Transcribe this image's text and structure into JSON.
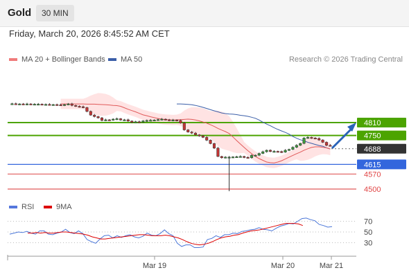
{
  "header": {
    "instrument": "Gold",
    "timeframe": "30 MIN",
    "datetime": "Friday, March 20, 2026 8:45:52 AM CET"
  },
  "legend": {
    "ma20": "MA 20 + Bollinger Bands",
    "ma50": "MA 50",
    "credit": "Research © 2026 Trading Central",
    "rsi": "RSI",
    "rsi_ma": "9MA"
  },
  "colors": {
    "resistance": "#4ca400",
    "support": "#3366dd",
    "ma20": "#e05a5a",
    "ma50": "#3a5ea8",
    "band_fill": "#ffd9d9",
    "rsi": "#4a76d8",
    "rsi_ma": "#dd0000",
    "candle_up": "#3d9a3d",
    "candle_down": "#c23535"
  },
  "levels": [
    {
      "label": "4810",
      "kind": "resistance"
    },
    {
      "label": "4750",
      "kind": "resistance"
    },
    {
      "label": "4688",
      "kind": "current"
    },
    {
      "label": "4615",
      "kind": "support"
    },
    {
      "label": "4570",
      "kind": "support2"
    },
    {
      "label": "4500",
      "kind": "support2"
    }
  ],
  "chart_data": [
    {
      "type": "line",
      "title": "Gold 30 MIN",
      "x_labels": [
        "Mar 19",
        "Mar 20",
        "Mar 21"
      ],
      "price_levels": [
        4810,
        4750,
        4688,
        4615,
        4570,
        4500
      ],
      "ylim": [
        4490,
        4900
      ],
      "series": [
        {
          "name": "Price",
          "values": [
            4897,
            4898,
            4897,
            4897,
            4896,
            4897,
            4896,
            4896,
            4896,
            4895,
            4895,
            4894,
            4894,
            4893,
            4891,
            4894,
            4897,
            4890,
            4886,
            4884,
            4880,
            4862,
            4845,
            4838,
            4832,
            4820,
            4823,
            4822,
            4826,
            4828,
            4822,
            4823,
            4817,
            4811,
            4814,
            4812,
            4818,
            4820,
            4821,
            4822,
            4824,
            4826,
            4823,
            4821,
            4822,
            4820,
            4808,
            4776,
            4766,
            4761,
            4753,
            4748,
            4741,
            4728,
            4712,
            4691,
            4652,
            4646,
            4649,
            4649,
            4650,
            4651,
            4652,
            4648,
            4646,
            4657,
            4658,
            4666,
            4674,
            4681,
            4675,
            4676,
            4675,
            4672,
            4681,
            4685,
            4695,
            4704,
            4713,
            4738,
            4741,
            4738,
            4736,
            4729,
            4718,
            4704,
            4702
          ]
        },
        {
          "name": "MA 20",
          "values": [
            4897,
            4897,
            4897,
            4897,
            4897,
            4897,
            4897,
            4896,
            4896,
            4896,
            4895,
            4894,
            4893,
            4892,
            4890,
            4889,
            4886,
            4879,
            4872,
            4866,
            4860,
            4853,
            4846,
            4842,
            4837,
            4833,
            4829,
            4826,
            4824,
            4823,
            4822,
            4823,
            4824,
            4825,
            4826,
            4825,
            4822,
            4818,
            4813,
            4807,
            4800,
            4792,
            4783,
            4775,
            4768,
            4759,
            4743,
            4726,
            4710,
            4694,
            4679,
            4665,
            4652,
            4642,
            4634,
            4626,
            4623,
            4622,
            4626,
            4632,
            4640,
            4649,
            4657,
            4665,
            4672,
            4681,
            4688,
            4694,
            4697,
            4697,
            4695,
            4692,
            4687
          ]
        },
        {
          "name": "MA 50",
          "values": [
            4897,
            4897,
            4896,
            4895,
            4893,
            4890,
            4886,
            4881,
            4876,
            4870,
            4865,
            4860,
            4855,
            4852,
            4850,
            4849,
            4847,
            4844,
            4842,
            4839,
            4835,
            4830,
            4822,
            4812,
            4803,
            4795,
            4786,
            4778,
            4771,
            4764,
            4756,
            4745,
            4737,
            4730,
            4725,
            4718,
            4713,
            4708,
            4703,
            4700,
            4692,
            4687
          ]
        }
      ]
    },
    {
      "type": "line",
      "title": "RSI",
      "ylim": [
        0,
        100
      ],
      "y_ticks": [
        70,
        50,
        30
      ],
      "series": [
        {
          "name": "RSI",
          "values": [
            46,
            48,
            50,
            49,
            51,
            48,
            46,
            52,
            52,
            46,
            45,
            48,
            50,
            55,
            49,
            47,
            52,
            47,
            36,
            32,
            29,
            37,
            43,
            44,
            39,
            43,
            40,
            43,
            45,
            41,
            39,
            42,
            48,
            44,
            43,
            47,
            54,
            47,
            43,
            29,
            23,
            26,
            26,
            21,
            21,
            22,
            36,
            38,
            43,
            40,
            45,
            45,
            48,
            47,
            51,
            52,
            54,
            55,
            58,
            55,
            54,
            52,
            57,
            61,
            63,
            66,
            65,
            70,
            75,
            76,
            73,
            71,
            64,
            62,
            59,
            60
          ]
        },
        {
          "name": "9MA",
          "values": [
            48,
            48,
            49,
            48,
            49,
            48,
            48,
            49,
            50,
            50,
            49,
            48,
            47,
            46,
            44,
            41,
            39,
            37,
            37,
            38,
            39,
            40,
            41,
            42,
            43,
            44,
            45,
            45,
            44,
            43,
            43,
            43,
            44,
            43,
            41,
            39,
            36,
            32,
            29,
            27,
            26,
            27,
            29,
            32,
            36,
            39,
            41,
            42,
            44,
            45,
            48,
            50,
            52,
            53,
            54,
            56,
            58,
            60,
            62,
            64,
            66,
            66,
            66,
            65,
            62
          ]
        }
      ]
    }
  ]
}
